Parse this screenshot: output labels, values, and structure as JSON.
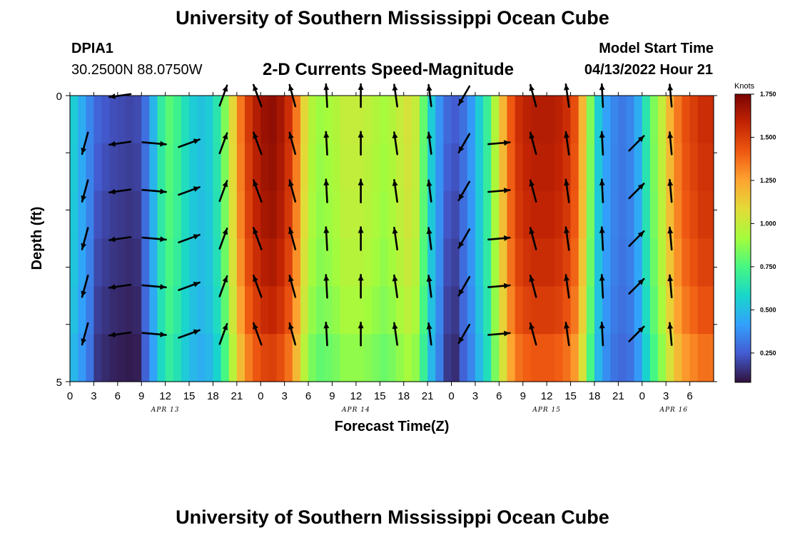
{
  "header": {
    "title_top": "University of Southern Mississippi Ocean Cube",
    "station_id": "DPIA1",
    "coords": "30.2500N  88.0750W",
    "chart_title": "2-D Currents Speed-Magnitude",
    "model_label": "Model Start Time",
    "model_time": "04/13/2022 Hour 21",
    "title_bottom": "University of Southern Mississippi Ocean Cube"
  },
  "chart_data": {
    "type": "heatmap",
    "title": "2-D Currents Speed-Magnitude",
    "xlabel": "Forecast Time(Z)",
    "ylabel": "Depth (ft)",
    "colorbar_label": "Knots",
    "colorbar_ticks": [
      "0.250",
      "0.500",
      "0.750",
      "1.000",
      "1.250",
      "1.500",
      "1.750"
    ],
    "colorbar_values": [
      0.25,
      0.5,
      0.75,
      1.0,
      1.25,
      1.5,
      1.75
    ],
    "color_range": [
      0.08,
      1.75
    ],
    "x_range_hours": [
      0,
      81
    ],
    "x_ticks": [
      "0",
      "3",
      "6",
      "9",
      "12",
      "15",
      "18",
      "21",
      "0",
      "3",
      "6",
      "9",
      "12",
      "15",
      "18",
      "21",
      "0",
      "3",
      "6",
      "9",
      "12",
      "15",
      "18",
      "21",
      "0",
      "3",
      "6"
    ],
    "date_labels": [
      {
        "label": "APR 13",
        "hour": 12
      },
      {
        "label": "APR 14",
        "hour": 36
      },
      {
        "label": "APR 15",
        "hour": 60
      },
      {
        "label": "APR 16",
        "hour": 76
      }
    ],
    "y_range": [
      0,
      5
    ],
    "y_ticks": [
      "0",
      "5"
    ],
    "speed_profile_hours": [
      0,
      1,
      2,
      3,
      4,
      5,
      6,
      7,
      8,
      9,
      10,
      11,
      12,
      13,
      14,
      15,
      16,
      17,
      18,
      19,
      20,
      21,
      22,
      23,
      24,
      25,
      26,
      27,
      28,
      29,
      30,
      31,
      32,
      33,
      34,
      35,
      36,
      37,
      38,
      39,
      40,
      41,
      42,
      43,
      44,
      45,
      46,
      47,
      48,
      49,
      50,
      51,
      52,
      53,
      54,
      55,
      56,
      57,
      58,
      59,
      60,
      61,
      62,
      63,
      64,
      65,
      66,
      67,
      68,
      69,
      70,
      71,
      72,
      73,
      74,
      75,
      76,
      77,
      78,
      79,
      80
    ],
    "speed_profile_surface": [
      0.55,
      0.45,
      0.35,
      0.27,
      0.24,
      0.22,
      0.21,
      0.2,
      0.21,
      0.3,
      0.48,
      0.68,
      0.78,
      0.72,
      0.62,
      0.55,
      0.52,
      0.55,
      0.65,
      0.85,
      1.1,
      1.35,
      1.52,
      1.62,
      1.68,
      1.7,
      1.65,
      1.55,
      1.35,
      1.1,
      0.95,
      0.9,
      0.92,
      0.95,
      1.0,
      1.0,
      1.0,
      0.98,
      0.95,
      0.92,
      0.95,
      1.0,
      1.05,
      1.0,
      0.8,
      0.55,
      0.38,
      0.28,
      0.25,
      0.3,
      0.4,
      0.55,
      0.7,
      0.95,
      1.2,
      1.42,
      1.55,
      1.6,
      1.62,
      1.62,
      1.62,
      1.6,
      1.55,
      1.45,
      1.2,
      0.85,
      0.55,
      0.42,
      0.35,
      0.32,
      0.35,
      0.45,
      0.65,
      0.85,
      1.0,
      1.2,
      1.35,
      1.45,
      1.5,
      1.55,
      1.55
    ],
    "depth_factors": [
      1.0,
      0.99,
      0.98,
      0.96,
      0.93,
      0.88
    ],
    "arrows": [
      {
        "hour": 1.9,
        "dir": 195,
        "len": 31
      },
      {
        "hour": 6.3,
        "dir": 262,
        "len": 30
      },
      {
        "hour": 10.6,
        "dir": 95,
        "len": 33
      },
      {
        "hour": 15.0,
        "dir": 70,
        "len": 31
      },
      {
        "hour": 19.3,
        "dir": 20,
        "len": 30
      },
      {
        "hour": 23.6,
        "dir": 340,
        "len": 32
      },
      {
        "hour": 28.0,
        "dir": 345,
        "len": 31
      },
      {
        "hour": 32.3,
        "dir": 357,
        "len": 32
      },
      {
        "hour": 36.6,
        "dir": 0,
        "len": 32
      },
      {
        "hour": 41.0,
        "dir": 352,
        "len": 31
      },
      {
        "hour": 45.3,
        "dir": 353,
        "len": 30
      },
      {
        "hour": 49.6,
        "dir": 210,
        "len": 30
      },
      {
        "hour": 54.0,
        "dir": 85,
        "len": 30
      },
      {
        "hour": 58.3,
        "dir": 345,
        "len": 31
      },
      {
        "hour": 62.6,
        "dir": 352,
        "len": 32
      },
      {
        "hour": 67.0,
        "dir": 357,
        "len": 32
      },
      {
        "hour": 71.3,
        "dir": 45,
        "len": 29
      },
      {
        "hour": 75.6,
        "dir": 355,
        "len": 31
      }
    ]
  }
}
